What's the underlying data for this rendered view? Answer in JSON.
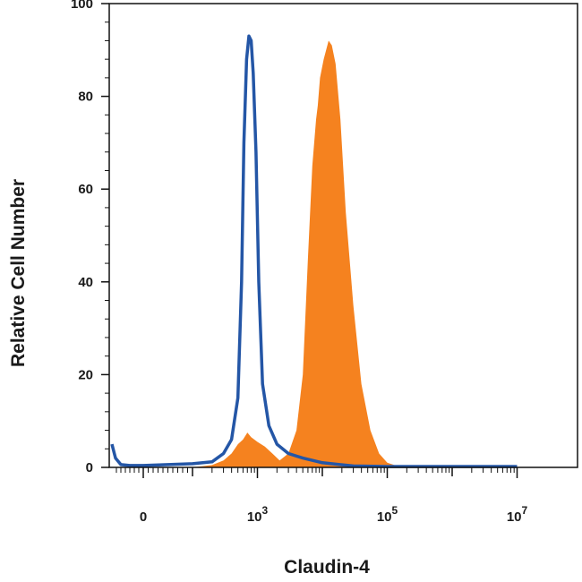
{
  "chart_data": {
    "type": "area",
    "xlabel": "Claudin-4",
    "ylabel": "Relative Cell Number",
    "x_scale": "biexponential",
    "xlim": [
      -700,
      10000000
    ],
    "ylim": [
      0,
      100
    ],
    "yticks": [
      {
        "value": 0,
        "label": "0"
      },
      {
        "value": 20,
        "label": "20"
      },
      {
        "value": 40,
        "label": "40"
      },
      {
        "value": 60,
        "label": "60"
      },
      {
        "value": 80,
        "label": "80"
      },
      {
        "value": 100,
        "label": "100"
      }
    ],
    "xticks": [
      {
        "value": 0,
        "base": "0",
        "exp": ""
      },
      {
        "value": 1000,
        "base": "10",
        "exp": "3"
      },
      {
        "value": 100000,
        "base": "10",
        "exp": "5"
      },
      {
        "value": 10000000,
        "base": "10",
        "exp": "7"
      }
    ],
    "grid": false,
    "legend": "none",
    "series": [
      {
        "style": "outline",
        "color": "#2456a6",
        "points": [
          [
            -700,
            5
          ],
          [
            -620,
            2
          ],
          [
            -500,
            0.6
          ],
          [
            -300,
            0.4
          ],
          [
            0,
            0.4
          ],
          [
            100,
            0.8
          ],
          [
            200,
            1.2
          ],
          [
            300,
            3
          ],
          [
            400,
            6
          ],
          [
            500,
            15
          ],
          [
            570,
            40
          ],
          [
            620,
            70
          ],
          [
            680,
            88
          ],
          [
            740,
            93
          ],
          [
            800,
            92
          ],
          [
            860,
            85
          ],
          [
            950,
            68
          ],
          [
            1050,
            40
          ],
          [
            1200,
            18
          ],
          [
            1500,
            9
          ],
          [
            2000,
            5
          ],
          [
            3000,
            3
          ],
          [
            5000,
            2
          ],
          [
            10000,
            1
          ],
          [
            30000,
            0.3
          ],
          [
            100000,
            0.2
          ],
          [
            10000000,
            0.2
          ]
        ]
      },
      {
        "style": "filled",
        "color": "#f5821f",
        "points": [
          [
            -700,
            0
          ],
          [
            100,
            0
          ],
          [
            200,
            0.5
          ],
          [
            300,
            1.5
          ],
          [
            400,
            3
          ],
          [
            500,
            5
          ],
          [
            600,
            6
          ],
          [
            700,
            7.5
          ],
          [
            800,
            6.5
          ],
          [
            1000,
            5.5
          ],
          [
            1300,
            4.5
          ],
          [
            1700,
            3
          ],
          [
            2200,
            1.5
          ],
          [
            3000,
            3
          ],
          [
            4000,
            8
          ],
          [
            5000,
            20
          ],
          [
            6000,
            45
          ],
          [
            7000,
            65
          ],
          [
            8000,
            75
          ],
          [
            8500,
            78
          ],
          [
            9200,
            84
          ],
          [
            10500,
            88
          ],
          [
            12500,
            92
          ],
          [
            14000,
            91
          ],
          [
            16000,
            87
          ],
          [
            19000,
            75
          ],
          [
            23000,
            55
          ],
          [
            30000,
            35
          ],
          [
            40000,
            18
          ],
          [
            55000,
            8
          ],
          [
            75000,
            3
          ],
          [
            100000,
            1
          ],
          [
            150000,
            0.2
          ],
          [
            10000000,
            0
          ]
        ]
      }
    ]
  }
}
